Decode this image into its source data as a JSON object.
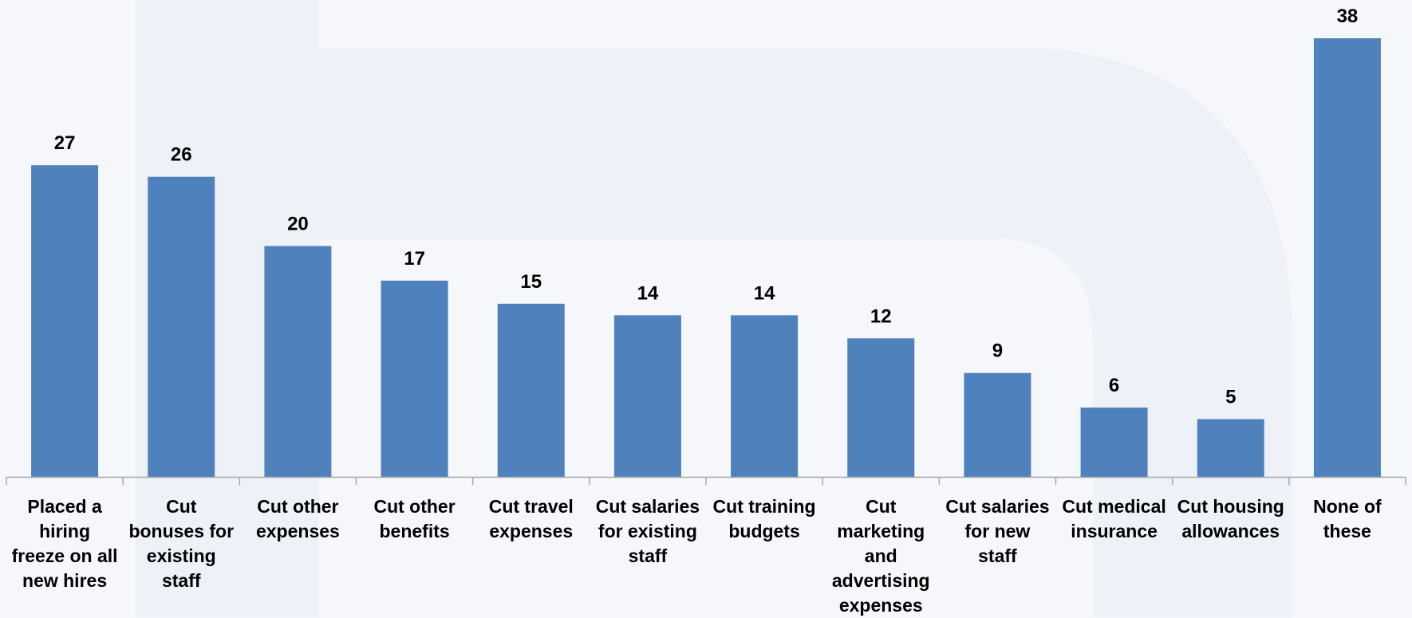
{
  "chart_data": {
    "type": "bar",
    "categories": [
      "Placed a hiring freeze on all new hires",
      "Cut bonuses for existing staff",
      "Cut other expenses",
      "Cut other benefits",
      "Cut travel expenses",
      "Cut salaries for existing staff",
      "Cut training budgets",
      "Cut marketing and advertising expenses",
      "Cut salaries for new staff",
      "Cut medical insurance",
      "Cut housing allowances",
      "None of these"
    ],
    "category_lines": [
      [
        "Placed a",
        "hiring",
        "freeze on all",
        "new hires"
      ],
      [
        "Cut",
        "bonuses for",
        "existing",
        "staff"
      ],
      [
        "Cut other",
        "expenses"
      ],
      [
        "Cut other",
        "benefits"
      ],
      [
        "Cut travel",
        "expenses"
      ],
      [
        "Cut salaries",
        "for existing",
        "staff"
      ],
      [
        "Cut training",
        "budgets"
      ],
      [
        "Cut",
        "marketing",
        "and",
        "advertising",
        "expenses"
      ],
      [
        "Cut salaries",
        "for new",
        "staff"
      ],
      [
        "Cut medical",
        "insurance"
      ],
      [
        "Cut housing",
        "allowances"
      ],
      [
        "None of",
        "these"
      ]
    ],
    "values": [
      27,
      26,
      20,
      17,
      15,
      14,
      14,
      12,
      9,
      6,
      5,
      38
    ],
    "bar_color": "#4f81bd",
    "axis_color": "#a6a6a6",
    "background_color": "#f5f7fb",
    "title": "",
    "xlabel": "",
    "ylabel": "",
    "ylim": [
      0,
      40
    ],
    "grid": false,
    "legend": "none",
    "data_labels": true
  }
}
